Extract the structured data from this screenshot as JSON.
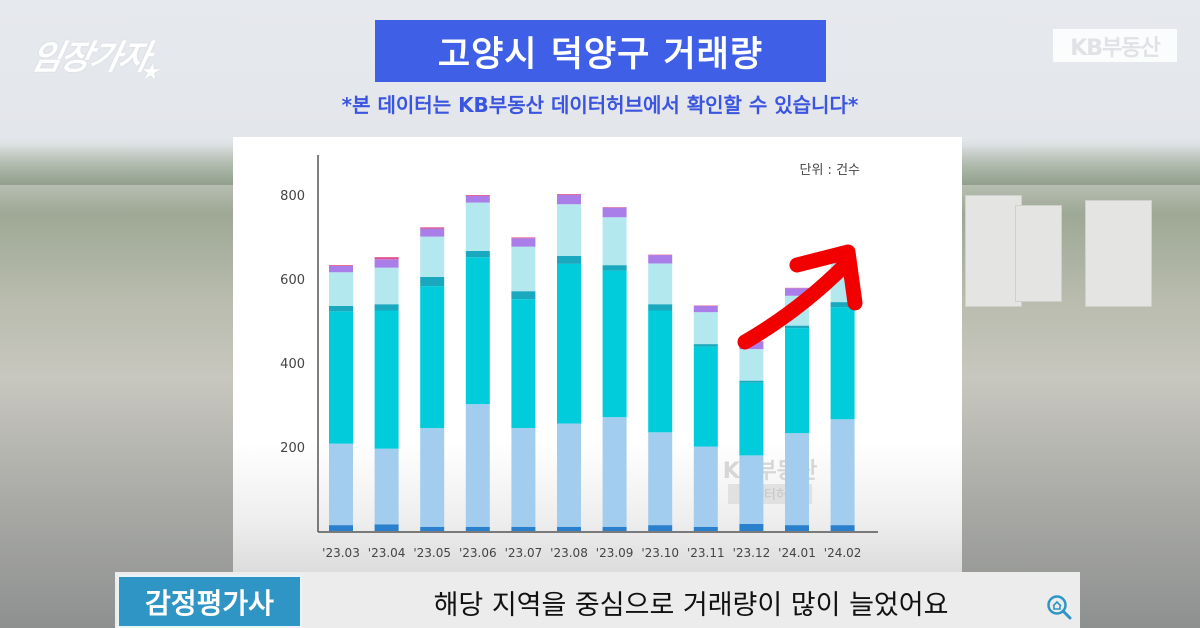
{
  "channel_logo": "임장가자",
  "source_logo": "KB부동산",
  "title": "고양시 덕양구 거래량",
  "subtitle": {
    "prefix": "*본 데이터는 ",
    "highlight": "KB부동산 데이터허브",
    "suffix": "에서 확인할 수 있습니다*"
  },
  "caption": {
    "speaker": "감정평가사",
    "text": "해당 지역을 중심으로 거래량이 많이 늘었어요"
  },
  "chart_data": {
    "type": "bar",
    "stacked": true,
    "unit_label": "단위 : 건수",
    "watermark": [
      "KB부동산",
      "데이터허브"
    ],
    "categories": [
      "'23.03",
      "'23.04",
      "'23.05",
      "'23.06",
      "'23.07",
      "'23.08",
      "'23.09",
      "'23.10",
      "'23.11",
      "'23.12",
      "'24.01",
      "'24.02"
    ],
    "ylim": [
      0,
      900
    ],
    "yticks": [
      200,
      400,
      600,
      800
    ],
    "grid": false,
    "annotation": "red upward arrow from '23.12 to '24.02",
    "series": [
      {
        "name": "s1",
        "color": "#2a80cc",
        "values": [
          14,
          16,
          10,
          10,
          10,
          10,
          10,
          14,
          10,
          17,
          14,
          14
        ]
      },
      {
        "name": "s2",
        "color": "#a2cdee",
        "values": [
          194,
          180,
          235,
          292,
          235,
          246,
          261,
          221,
          191,
          163,
          219,
          252
        ]
      },
      {
        "name": "s3",
        "color": "#00ccdb",
        "values": [
          315,
          329,
          338,
          350,
          307,
          380,
          349,
          290,
          238,
          173,
          250,
          267
        ]
      },
      {
        "name": "s4",
        "color": "#19a8bd",
        "values": [
          13,
          15,
          22,
          15,
          19,
          19,
          13,
          15,
          6,
          5,
          6,
          12
        ]
      },
      {
        "name": "s5",
        "color": "#b4e8ef",
        "values": [
          80,
          87,
          96,
          115,
          106,
          123,
          114,
          97,
          76,
          75,
          71,
          92
        ]
      },
      {
        "name": "s6",
        "color": "#a97ee9",
        "values": [
          15,
          20,
          19,
          16,
          20,
          22,
          23,
          20,
          15,
          18,
          18,
          22
        ]
      },
      {
        "name": "s7",
        "color": "#e0508a",
        "values": [
          2,
          5,
          3,
          2,
          2,
          2,
          1,
          1,
          1,
          1,
          1,
          1
        ]
      }
    ]
  }
}
